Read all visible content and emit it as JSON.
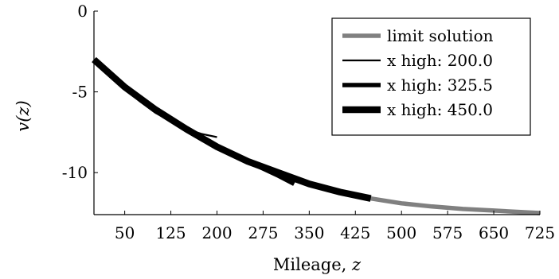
{
  "chart_data": {
    "type": "line",
    "xlabel": "Mileage,",
    "xlabel_var": "z",
    "ylabel": "v(z)",
    "xlim": [
      0,
      725
    ],
    "ylim": [
      -12.6,
      0
    ],
    "x_ticks": [
      50,
      125,
      200,
      275,
      350,
      425,
      500,
      575,
      650,
      725
    ],
    "y_ticks": [
      0,
      -5,
      -10
    ],
    "y_tick_labels": [
      "0",
      "-5",
      "-10"
    ],
    "legend_position": "top-right",
    "series": [
      {
        "name": "limit solution",
        "color": "#808080",
        "style": "thick-gray",
        "x": [
          0,
          50,
          100,
          150,
          200,
          250,
          300,
          350,
          400,
          450,
          500,
          550,
          600,
          650,
          700,
          725
        ],
        "y": [
          -3.0,
          -4.7,
          -6.1,
          -7.3,
          -8.4,
          -9.3,
          -10.0,
          -10.7,
          -11.2,
          -11.6,
          -11.9,
          -12.1,
          -12.25,
          -12.35,
          -12.45,
          -12.5
        ]
      },
      {
        "name": "x high: 200.0",
        "color": "#000000",
        "style": "thin",
        "x": [
          0,
          25,
          50,
          75,
          100,
          125,
          150,
          175,
          200
        ],
        "y": [
          -3.0,
          -3.9,
          -4.8,
          -5.6,
          -6.3,
          -6.8,
          -7.3,
          -7.6,
          -7.8
        ]
      },
      {
        "name": "x high: 325.5",
        "color": "#000000",
        "style": "thick",
        "x": [
          0,
          50,
          100,
          150,
          200,
          250,
          300,
          325.5
        ],
        "y": [
          -3.0,
          -4.7,
          -6.1,
          -7.3,
          -8.4,
          -9.3,
          -10.2,
          -10.7
        ]
      },
      {
        "name": "x high: 450.0",
        "color": "#000000",
        "style": "very-thick",
        "x": [
          0,
          50,
          100,
          150,
          200,
          250,
          300,
          350,
          400,
          450
        ],
        "y": [
          -3.0,
          -4.7,
          -6.1,
          -7.3,
          -8.4,
          -9.3,
          -10.0,
          -10.7,
          -11.2,
          -11.6
        ]
      }
    ]
  }
}
